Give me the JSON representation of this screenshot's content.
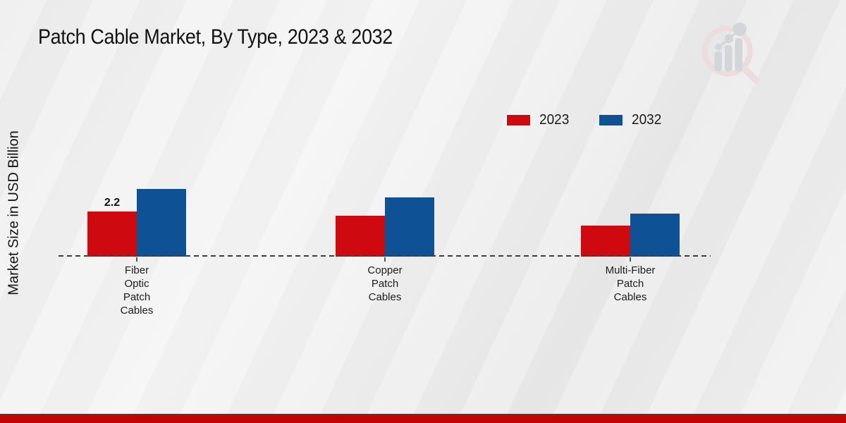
{
  "header": {
    "title": "Patch Cable Market, By Type, 2023 & 2032"
  },
  "watermark": {
    "name": "market-research-future-logo"
  },
  "legend": {
    "items": [
      {
        "label": "2023",
        "color": "#ce0a10"
      },
      {
        "label": "2032",
        "color": "#0e5194"
      }
    ]
  },
  "chart_data": {
    "type": "bar",
    "title": "Patch Cable Market, By Type, 2023 & 2032",
    "ylabel": "Market Size in USD Billion",
    "categories": [
      "Fiber Optic Patch Cables",
      "Copper Patch Cables",
      "Multi-Fiber Patch Cables"
    ],
    "category_lines": [
      [
        "Fiber",
        "Optic",
        "Patch",
        "Cables"
      ],
      [
        "Copper",
        "Patch",
        "Cables"
      ],
      [
        "Multi-Fiber",
        "Patch",
        "Cables"
      ]
    ],
    "series": [
      {
        "name": "2023",
        "color": "#ce0a10",
        "values": [
          2.2,
          2.0,
          1.5
        ]
      },
      {
        "name": "2032",
        "color": "#0e5194",
        "values": [
          3.3,
          2.9,
          2.1
        ]
      }
    ],
    "data_labels": [
      {
        "series_index": 0,
        "category_index": 0,
        "text": "2.2"
      }
    ],
    "ylim": [
      0,
      3.5
    ],
    "grid": false,
    "legend_position": "top-right",
    "baseline_style": "dashed"
  },
  "footer": {
    "bar_color": "#c20404"
  }
}
